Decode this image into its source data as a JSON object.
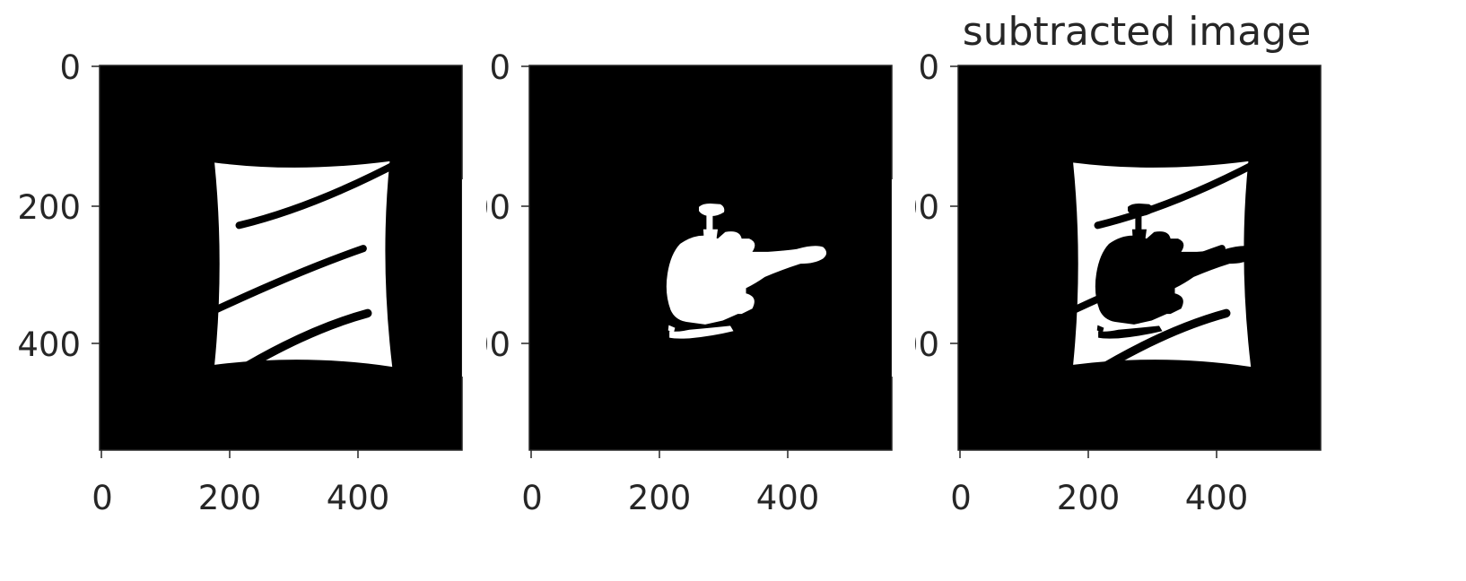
{
  "figure": {
    "background_color": "#ffffff",
    "image_background_color": "#000000",
    "foreground_color": "#ffffff",
    "axis_color": "#262626",
    "panels": [
      {
        "title": "",
        "content": "square-shape-with-diagonal-stripes",
        "x_tick_labels": [
          "0",
          "200",
          "400"
        ],
        "y_tick_labels": [
          "0",
          "200",
          "400"
        ]
      },
      {
        "title": "",
        "content": "helicopter-silhouette",
        "x_tick_labels": [
          "0",
          "200",
          "400"
        ],
        "y_tick_labels": [
          "0",
          "00",
          "00"
        ]
      },
      {
        "title": "subtracted image",
        "content": "difference-of-square-and-helicopter",
        "x_tick_labels": [
          "0",
          "200",
          "400"
        ],
        "y_tick_labels": [
          "0",
          "00",
          "00"
        ]
      }
    ]
  }
}
